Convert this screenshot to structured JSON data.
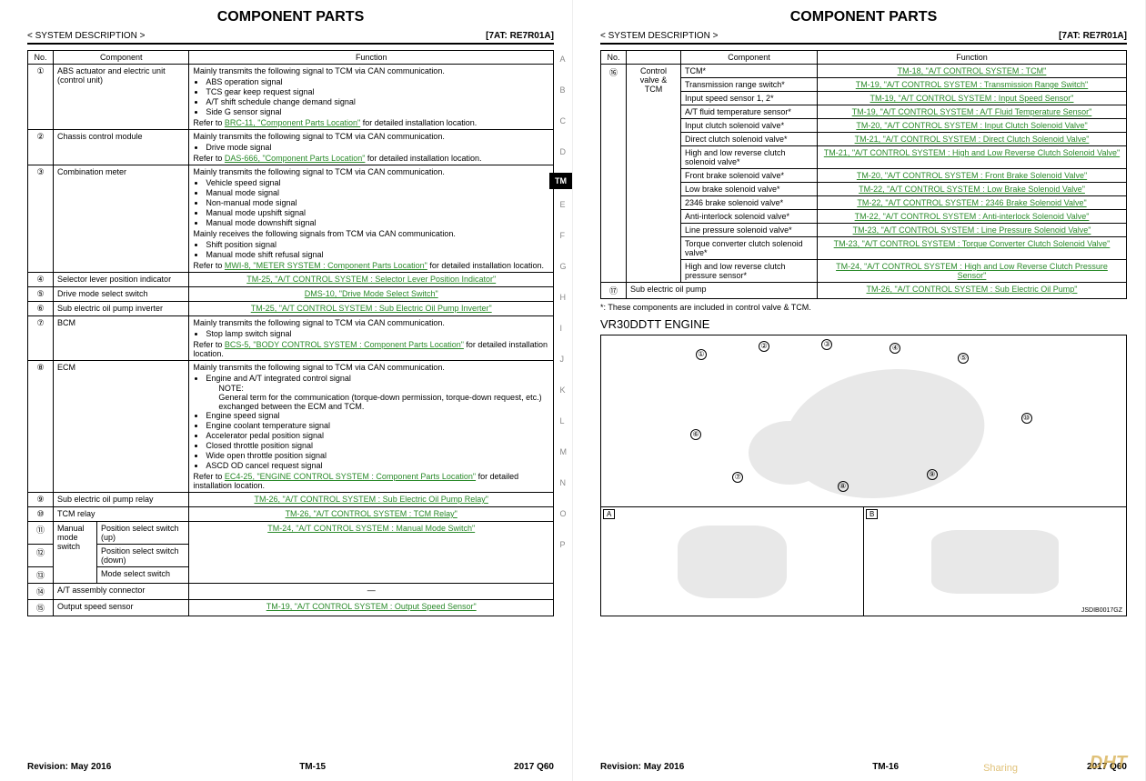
{
  "page1": {
    "title": "COMPONENT PARTS",
    "sysdesc": "< SYSTEM DESCRIPTION >",
    "code": "[7AT: RE7R01A]",
    "headers": {
      "no": "No.",
      "comp": "Component",
      "func": "Function"
    },
    "side_letters": [
      "A",
      "B",
      "C",
      "D",
      "",
      "E",
      "F",
      "G",
      "H",
      "I",
      "J",
      "K",
      "L",
      "M",
      "N",
      "O",
      "P"
    ],
    "tm_tag": "TM",
    "rows": [
      {
        "no": "①",
        "comp": "ABS actuator and electric unit (control unit)",
        "func_intro": "Mainly transmits the following signal to TCM via CAN communication.",
        "bullets": [
          "ABS operation signal",
          "TCS gear keep request signal",
          "A/T shift schedule change demand signal",
          "Side G sensor signal"
        ],
        "ref_pre": "Refer to ",
        "ref_link": "BRC-11, \"Component Parts Location\"",
        "ref_post": " for detailed installation location."
      },
      {
        "no": "②",
        "comp": "Chassis control module",
        "func_intro": "Mainly transmits the following signal to TCM via CAN communication.",
        "bullets": [
          "Drive mode signal"
        ],
        "ref_pre": "Refer to ",
        "ref_link": "DAS-666, \"Component Parts Location\"",
        "ref_post": " for detailed installation location."
      },
      {
        "no": "③",
        "comp": "Combination meter",
        "func_intro": "Mainly transmits the following signal to TCM via CAN communication.",
        "bullets": [
          "Vehicle speed signal",
          "Manual mode signal",
          "Non-manual mode signal",
          "Manual mode upshift signal",
          "Manual mode downshift signal"
        ],
        "func_intro2": "Mainly receives the following signals from TCM via CAN communication.",
        "bullets2": [
          "Shift position signal",
          "Manual mode shift refusal signal"
        ],
        "ref_pre": "Refer to ",
        "ref_link": "MWI-8, \"METER SYSTEM : Component Parts Location\"",
        "ref_post": " for detailed installation location."
      },
      {
        "no": "④",
        "comp": "Selector lever position indicator",
        "link_only": "TM-25, \"A/T CONTROL SYSTEM : Selector Lever Position Indicator\""
      },
      {
        "no": "⑤",
        "comp": "Drive mode select switch",
        "link_only": "DMS-10, \"Drive Mode Select Switch\""
      },
      {
        "no": "⑥",
        "comp": "Sub electric oil pump inverter",
        "link_only": "TM-25, \"A/T CONTROL SYSTEM : Sub Electric Oil Pump Inverter\""
      },
      {
        "no": "⑦",
        "comp": "BCM",
        "func_intro": "Mainly transmits the following signal to TCM via CAN communication.",
        "bullets": [
          "Stop lamp switch signal"
        ],
        "ref_pre": "Refer to ",
        "ref_link": "BCS-5, \"BODY CONTROL SYSTEM : Component Parts Location\"",
        "ref_post": " for detailed installation location."
      },
      {
        "no": "⑧",
        "comp": "ECM",
        "func_intro": "Mainly transmits the following signal to TCM via CAN communication.",
        "bullets_special": [
          "Engine and A/T integrated control signal",
          "  NOTE:",
          "  General term for the communication (torque-down permission, torque-down request, etc.) exchanged between the ECM and TCM.",
          "Engine speed signal",
          "Engine coolant temperature signal",
          "Accelerator pedal position signal",
          "Closed throttle position signal",
          "Wide open throttle position signal",
          "ASCD OD cancel request signal"
        ],
        "ref_pre": "Refer to ",
        "ref_link": "EC4-25, \"ENGINE CONTROL SYSTEM : Component Parts Location\"",
        "ref_post": " for detailed installation location."
      },
      {
        "no": "⑨",
        "comp": "Sub electric oil pump relay",
        "link_only": "TM-26, \"A/T CONTROL SYSTEM : Sub Electric Oil Pump Relay\""
      },
      {
        "no": "⑩",
        "comp": "TCM relay",
        "link_only": "TM-26, \"A/T CONTROL SYSTEM : TCM Relay\""
      }
    ],
    "mms_label": "Manual mode switch",
    "mms_rows": [
      {
        "no": "⑪",
        "comp": "Position select switch (up)"
      },
      {
        "no": "⑫",
        "comp": "Position select switch (down)"
      },
      {
        "no": "⑬",
        "comp": "Mode select switch"
      }
    ],
    "mms_link": "TM-24, \"A/T CONTROL SYSTEM : Manual Mode Switch\"",
    "row14": {
      "no": "⑭",
      "comp": "A/T assembly connector",
      "func": "—"
    },
    "row15": {
      "no": "⑮",
      "comp": "Output speed sensor",
      "link_only": "TM-19, \"A/T CONTROL SYSTEM : Output Speed Sensor\""
    },
    "footer": {
      "rev": "Revision: May 2016",
      "pg": "TM-15",
      "model": "2017 Q60"
    }
  },
  "page2": {
    "title": "COMPONENT PARTS",
    "sysdesc": "< SYSTEM DESCRIPTION >",
    "code": "[7AT: RE7R01A]",
    "headers": {
      "no": "No.",
      "comp": "Component",
      "func": "Function"
    },
    "group_label": "Control valve & TCM",
    "group_no": "⑯",
    "subrows": [
      {
        "comp": "TCM*",
        "link": "TM-18, \"A/T CONTROL SYSTEM : TCM\""
      },
      {
        "comp": "Transmission range switch*",
        "link": "TM-19, \"A/T CONTROL SYSTEM : Transmission Range Switch\""
      },
      {
        "comp": "Input speed sensor 1, 2*",
        "link": "TM-19, \"A/T CONTROL SYSTEM : Input Speed Sensor\""
      },
      {
        "comp": "A/T fluid temperature sensor*",
        "link": "TM-19, \"A/T CONTROL SYSTEM : A/T Fluid Temperature Sensor\""
      },
      {
        "comp": "Input clutch solenoid valve*",
        "link": "TM-20, \"A/T CONTROL SYSTEM : Input Clutch Solenoid Valve\""
      },
      {
        "comp": "Direct clutch solenoid valve*",
        "link": "TM-21, \"A/T CONTROL SYSTEM : Direct Clutch Solenoid Valve\""
      },
      {
        "comp": "High and low reverse clutch solenoid valve*",
        "link": "TM-21, \"A/T CONTROL SYSTEM : High and Low Reverse Clutch Solenoid Valve\""
      },
      {
        "comp": "Front brake solenoid valve*",
        "link": "TM-20, \"A/T CONTROL SYSTEM : Front Brake Solenoid Valve\""
      },
      {
        "comp": "Low brake solenoid valve*",
        "link": "TM-22, \"A/T CONTROL SYSTEM : Low Brake Solenoid Valve\""
      },
      {
        "comp": "2346 brake solenoid valve*",
        "link": "TM-22, \"A/T CONTROL SYSTEM : 2346 Brake Solenoid Valve\""
      },
      {
        "comp": "Anti-interlock solenoid valve*",
        "link": "TM-22, \"A/T CONTROL SYSTEM : Anti-interlock Solenoid Valve\""
      },
      {
        "comp": "Line pressure solenoid valve*",
        "link": "TM-23, \"A/T CONTROL SYSTEM : Line Pressure Solenoid Valve\""
      },
      {
        "comp": "Torque converter clutch solenoid valve*",
        "link": "TM-23, \"A/T CONTROL SYSTEM : Torque Converter Clutch Solenoid Valve\""
      },
      {
        "comp": "High and low reverse clutch pressure sensor*",
        "link": "TM-24, \"A/T CONTROL SYSTEM : High and Low Reverse Clutch Pressure Sensor\""
      }
    ],
    "row17": {
      "no": "⑰",
      "comp": "Sub electric oil pump",
      "link": "TM-26, \"A/T CONTROL SYSTEM : Sub Electric Oil Pump\""
    },
    "note": "*: These components are included in control valve & TCM.",
    "engine": "VR30DDTT ENGINE",
    "diag": {
      "a": "A",
      "b": "B",
      "callouts": [
        "①",
        "②",
        "③",
        "④",
        "⑤",
        "⑥",
        "⑦",
        "⑧",
        "⑨",
        "⑩"
      ],
      "part": "JSDIB0017GZ"
    },
    "footer": {
      "rev": "Revision: May 2016",
      "pg": "TM-16",
      "model": "2017 Q60"
    },
    "watermark": "DHT",
    "sharing": "Sharing"
  },
  "colors": {
    "link": "#2a8a2a",
    "tm_bg": "#000000",
    "tm_fg": "#ffffff",
    "watermark": "#d4a840"
  }
}
